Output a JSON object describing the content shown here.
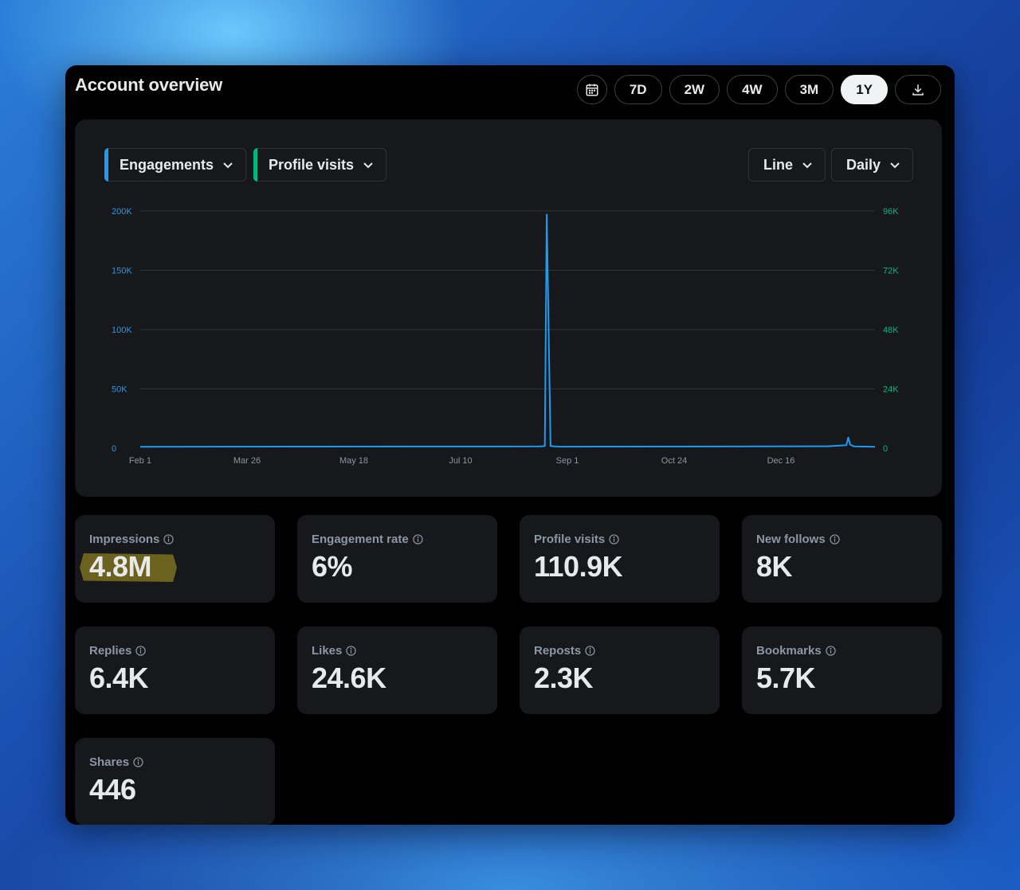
{
  "title": "Account overview",
  "ranges": [
    "7D",
    "2W",
    "4W",
    "3M",
    "1Y"
  ],
  "active_range": "1Y",
  "controls": {
    "metric_primary": "Engagements",
    "metric_secondary": "Profile visits",
    "chart_type": "Line",
    "interval": "Daily"
  },
  "colors": {
    "primary": "#1d9bf0",
    "secondary": "#00ba7c",
    "highlight": "#6b6220"
  },
  "chart_data": {
    "type": "line",
    "x_labels": [
      "Feb 1",
      "Mar 26",
      "May 18",
      "Jul 10",
      "Sep 1",
      "Oct 24",
      "Dec 16"
    ],
    "y_left_labels": [
      "0",
      "50K",
      "100K",
      "150K",
      "200K"
    ],
    "y_right_labels": [
      "0",
      "24K",
      "48K",
      "72K",
      "96K"
    ],
    "ylim_left": [
      0,
      200000
    ],
    "ylim_right": [
      0,
      96000
    ],
    "grid": true,
    "series": [
      {
        "name": "Engagements",
        "axis": "left",
        "x": [
          0,
          210,
          212,
          213,
          215,
          217,
          220,
          300,
          360,
          370,
          371,
          372,
          374,
          385
        ],
        "values": [
          1200,
          1500,
          1800,
          197000,
          1800,
          1500,
          1300,
          1400,
          1600,
          2500,
          9000,
          3000,
          1500,
          1200
        ]
      }
    ]
  },
  "stats": [
    {
      "label": "Impressions",
      "value": "4.8M"
    },
    {
      "label": "Engagement rate",
      "value": "6%"
    },
    {
      "label": "Profile visits",
      "value": "110.9K"
    },
    {
      "label": "New follows",
      "value": "8K"
    },
    {
      "label": "Replies",
      "value": "6.4K"
    },
    {
      "label": "Likes",
      "value": "24.6K"
    },
    {
      "label": "Reposts",
      "value": "2.3K"
    },
    {
      "label": "Bookmarks",
      "value": "5.7K"
    },
    {
      "label": "Shares",
      "value": "446"
    }
  ]
}
